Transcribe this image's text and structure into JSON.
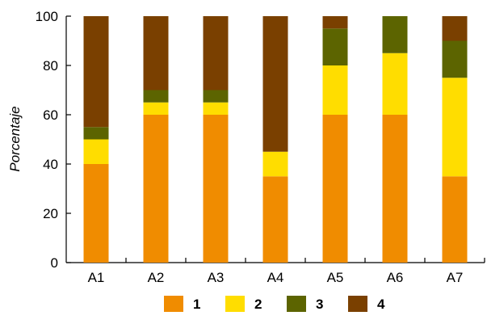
{
  "chart_data": {
    "type": "bar",
    "stacked": true,
    "title": "",
    "xlabel": "",
    "ylabel": "Porcentaje",
    "ylim": [
      0,
      100
    ],
    "yticks": [
      0,
      20,
      40,
      60,
      80,
      100
    ],
    "grid": false,
    "legend_position": "bottom",
    "categories": [
      "A1",
      "A2",
      "A3",
      "A4",
      "A5",
      "A6",
      "A7"
    ],
    "series": [
      {
        "name": "1",
        "color": "#F08C00",
        "values": [
          40,
          60,
          60,
          35,
          60,
          60,
          35
        ]
      },
      {
        "name": "2",
        "color": "#FFDD00",
        "values": [
          10,
          5,
          5,
          10,
          20,
          25,
          40
        ]
      },
      {
        "name": "3",
        "color": "#5C6400",
        "values": [
          5,
          5,
          5,
          0,
          15,
          15,
          15
        ]
      },
      {
        "name": "4",
        "color": "#7A4000",
        "values": [
          45,
          30,
          30,
          55,
          5,
          0,
          10
        ]
      }
    ]
  }
}
